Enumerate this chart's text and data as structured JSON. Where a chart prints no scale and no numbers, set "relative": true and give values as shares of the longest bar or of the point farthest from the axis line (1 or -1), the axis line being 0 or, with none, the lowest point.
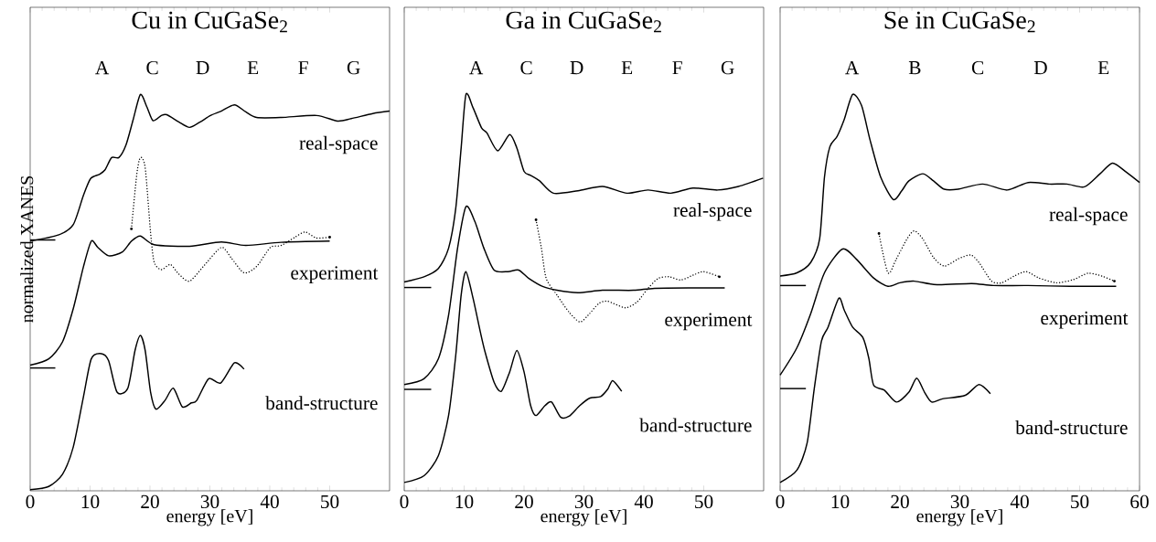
{
  "chart_data": [
    {
      "type": "line",
      "title": "Cu in CuGaSe$_{2}$",
      "xlabel": "energy     [eV]",
      "ylabel": "normalized XANES",
      "relative": true,
      "xlim": [
        0,
        60
      ],
      "xticks": [
        0,
        10,
        20,
        30,
        40,
        50
      ],
      "legend": false,
      "marker": "none",
      "annotations": [
        "A",
        "C",
        "D",
        "E",
        "F",
        "G"
      ],
      "series": [
        {
          "name": "real-space",
          "color": "#000000",
          "line_style": "solid",
          "x": [
            0,
            4.8,
            7.2,
            8.9,
            10.1,
            11.6,
            12.5,
            13.6,
            14.8,
            16.0,
            17.2,
            18.4,
            19.5,
            20.5,
            21.9,
            22.8,
            24.8,
            26.6,
            28.4,
            30.1,
            31.9,
            34.1,
            36.0,
            37.8,
            41.9,
            47.8,
            51.3,
            53.6,
            57.2,
            60
          ],
          "values": [
            0.63,
            0.646,
            0.672,
            0.746,
            0.788,
            0.799,
            0.81,
            0.841,
            0.841,
            0.873,
            0.937,
            1.0,
            0.968,
            0.934,
            0.947,
            0.949,
            0.931,
            0.917,
            0.931,
            0.947,
            0.958,
            0.974,
            0.956,
            0.942,
            0.942,
            0.947,
            0.933,
            0.939,
            0.952,
            0.958
          ]
        },
        {
          "name": "experiment",
          "color": "#000000",
          "line_style": "solid",
          "x": [
            0,
            3.1,
            5.4,
            7.2,
            8.9,
            10.2,
            11.3,
            13.1,
            15.4,
            16.9,
            18.4,
            20.7,
            26.6,
            31.9,
            36.0,
            41.9,
            50
          ],
          "values": [
            0.317,
            0.333,
            0.376,
            0.46,
            0.566,
            0.63,
            0.614,
            0.593,
            0.603,
            0.63,
            0.643,
            0.621,
            0.617,
            0.628,
            0.619,
            0.627,
            0.63
          ]
        },
        {
          "color": "#000000",
          "line_style": "dotted",
          "x": [
            16.9,
            17.8,
            18.4,
            19.2,
            20.1,
            20.7,
            21.9,
            23.4,
            24.8,
            26.6,
            28.9,
            31.9,
            33.6,
            35.7,
            37.8,
            40.1,
            41.9,
            44.2,
            45.9,
            47.8,
            50
          ],
          "values": [
            0.661,
            0.799,
            0.841,
            0.815,
            0.651,
            0.577,
            0.558,
            0.571,
            0.547,
            0.529,
            0.566,
            0.614,
            0.587,
            0.55,
            0.566,
            0.614,
            0.619,
            0.64,
            0.653,
            0.638,
            0.64
          ]
        },
        {
          "name": "band-structure",
          "color": "#000000",
          "line_style": "solid",
          "x": [
            0,
            3.1,
            5.4,
            7.2,
            8.9,
            10.2,
            11.9,
            13.1,
            14.5,
            16.3,
            17.5,
            18.4,
            19.2,
            20.1,
            21.0,
            22.5,
            23.9,
            25.4,
            26.9,
            27.8,
            29.8,
            31.8,
            34.1,
            35.7
          ],
          "values": [
            0.003,
            0.011,
            0.042,
            0.111,
            0.238,
            0.333,
            0.346,
            0.328,
            0.249,
            0.259,
            0.354,
            0.392,
            0.354,
            0.249,
            0.206,
            0.228,
            0.259,
            0.212,
            0.222,
            0.228,
            0.283,
            0.272,
            0.323,
            0.307
          ]
        },
        {
          "color": "#000000",
          "line_style": "solid",
          "x": [
            0,
            4.2
          ],
          "values": [
            0.633,
            0.633
          ]
        },
        {
          "color": "#000000",
          "line_style": "solid",
          "x": [
            0,
            4.2
          ],
          "values": [
            0.31,
            0.31
          ]
        }
      ]
    },
    {
      "type": "line",
      "title": "Ga in CuGaSe$_{2}$",
      "xlabel": "energy     [eV]",
      "relative": true,
      "xlim": [
        0,
        60
      ],
      "xticks": [
        0,
        10,
        20,
        30,
        40,
        50
      ],
      "legend": false,
      "marker": "none",
      "annotations": [
        "A",
        "C",
        "D",
        "E",
        "F",
        "G"
      ],
      "series": [
        {
          "name": "real-space",
          "color": "#000000",
          "line_style": "solid",
          "x": [
            0,
            3.3,
            5.7,
            7.4,
            8.6,
            9.5,
            10.3,
            11.5,
            12.9,
            13.8,
            15.6,
            17.6,
            18.8,
            20.0,
            21.1,
            22.6,
            24.9,
            29.0,
            33.1,
            37.2,
            40.7,
            44.5,
            48.2,
            52.3,
            55.8,
            59.9
          ],
          "values": [
            0.527,
            0.54,
            0.561,
            0.612,
            0.713,
            0.865,
            1.0,
            0.966,
            0.916,
            0.903,
            0.858,
            0.899,
            0.865,
            0.806,
            0.796,
            0.782,
            0.751,
            0.757,
            0.768,
            0.751,
            0.759,
            0.751,
            0.764,
            0.759,
            0.768,
            0.789
          ]
        },
        {
          "name": "experiment",
          "color": "#000000",
          "line_style": "solid",
          "x": [
            0,
            3.3,
            5.7,
            7.4,
            8.9,
            10.3,
            11.8,
            13.3,
            15.0,
            17.3,
            19.1,
            20.8,
            23.2,
            25.5,
            29.0,
            33.1,
            38.3,
            41.8,
            48.2,
            53.5
          ],
          "values": [
            0.268,
            0.283,
            0.333,
            0.443,
            0.612,
            0.717,
            0.679,
            0.612,
            0.557,
            0.553,
            0.557,
            0.536,
            0.515,
            0.506,
            0.5,
            0.506,
            0.506,
            0.511,
            0.512,
            0.512
          ]
        },
        {
          "color": "#000000",
          "line_style": "dotted",
          "x": [
            22.0,
            22.9,
            23.7,
            25.5,
            27.5,
            29.3,
            30.7,
            32.5,
            34.0,
            36.9,
            38.9,
            40.7,
            42.4,
            44.2,
            46.2,
            48.2,
            50.0,
            52.6
          ],
          "values": [
            0.684,
            0.612,
            0.536,
            0.494,
            0.451,
            0.426,
            0.443,
            0.473,
            0.478,
            0.462,
            0.477,
            0.511,
            0.536,
            0.54,
            0.532,
            0.544,
            0.553,
            0.54
          ]
        },
        {
          "name": "band-structure",
          "color": "#000000",
          "line_style": "solid",
          "x": [
            0,
            3.3,
            5.7,
            7.4,
            8.6,
            9.5,
            10.3,
            11.5,
            12.7,
            13.5,
            15.0,
            16.2,
            17.6,
            18.8,
            20.0,
            21.1,
            22.0,
            23.5,
            24.6,
            26.1,
            27.5,
            29.3,
            31.0,
            32.8,
            34.0,
            34.8,
            36.3
          ],
          "values": [
            0.021,
            0.038,
            0.089,
            0.19,
            0.342,
            0.494,
            0.553,
            0.485,
            0.401,
            0.35,
            0.274,
            0.251,
            0.3,
            0.354,
            0.3,
            0.215,
            0.19,
            0.215,
            0.224,
            0.186,
            0.188,
            0.215,
            0.234,
            0.238,
            0.257,
            0.278,
            0.251
          ]
        },
        {
          "color": "#000000",
          "line_style": "solid",
          "x": [
            0,
            4.5
          ],
          "values": [
            0.513,
            0.513
          ]
        },
        {
          "color": "#000000",
          "line_style": "solid",
          "x": [
            0,
            4.5
          ],
          "values": [
            0.256,
            0.256
          ]
        }
      ]
    },
    {
      "type": "line",
      "title": "Se in CuGaSe$_{2}$",
      "xlabel": "energy     [eV]",
      "relative": true,
      "xlim": [
        0,
        60
      ],
      "xticks": [
        0,
        10,
        20,
        30,
        40,
        50,
        60
      ],
      "legend": false,
      "marker": "none",
      "annotations": [
        "A",
        "B",
        "C",
        "D",
        "E"
      ],
      "series": [
        {
          "name": "real-space",
          "color": "#000000",
          "line_style": "solid",
          "x": [
            0,
            2.8,
            5.1,
            6.6,
            7.4,
            8.3,
            9.5,
            10.7,
            12.1,
            13.6,
            15.0,
            16.8,
            18.9,
            20.3,
            21.5,
            23.8,
            25.6,
            27.4,
            29.7,
            33.8,
            37.9,
            41.4,
            44.9,
            47.9,
            50.8,
            53.4,
            55.5,
            57.8,
            60
          ],
          "values": [
            0.542,
            0.55,
            0.576,
            0.636,
            0.791,
            0.868,
            0.894,
            0.937,
            1.0,
            0.972,
            0.886,
            0.791,
            0.735,
            0.757,
            0.782,
            0.8,
            0.782,
            0.761,
            0.761,
            0.774,
            0.759,
            0.778,
            0.774,
            0.774,
            0.767,
            0.8,
            0.827,
            0.804,
            0.778
          ]
        },
        {
          "name": "experiment",
          "color": "#000000",
          "line_style": "solid",
          "x": [
            0,
            2.8,
            5.1,
            7.4,
            10.4,
            12.7,
            15.6,
            18.0,
            20.0,
            22.4,
            26.2,
            32.0,
            35.6,
            41.4,
            48.4,
            56.1
          ],
          "values": [
            0.292,
            0.361,
            0.447,
            0.55,
            0.61,
            0.585,
            0.537,
            0.516,
            0.525,
            0.529,
            0.52,
            0.523,
            0.518,
            0.518,
            0.516,
            0.516
          ]
        },
        {
          "color": "#000000",
          "line_style": "dotted",
          "x": [
            16.5,
            18.0,
            19.4,
            21.2,
            22.4,
            23.8,
            25.6,
            27.4,
            29.7,
            31.8,
            33.2,
            35.3,
            37.0,
            39.1,
            41.1,
            43.2,
            46.1,
            49.0,
            51.4,
            53.7,
            55.8
          ],
          "values": [
            0.649,
            0.55,
            0.585,
            0.636,
            0.656,
            0.636,
            0.589,
            0.567,
            0.585,
            0.595,
            0.576,
            0.529,
            0.525,
            0.542,
            0.553,
            0.537,
            0.525,
            0.533,
            0.549,
            0.542,
            0.529
          ]
        },
        {
          "name": "band-structure",
          "color": "#000000",
          "line_style": "solid",
          "x": [
            0,
            2.8,
            4.5,
            5.7,
            6.9,
            8.0,
            9.8,
            10.7,
            12.1,
            13.8,
            14.8,
            15.6,
            17.4,
            19.4,
            21.5,
            22.8,
            24.1,
            25.3,
            27.1,
            30.9,
            33.2,
            35.1
          ],
          "values": [
            0.021,
            0.052,
            0.12,
            0.258,
            0.378,
            0.413,
            0.486,
            0.456,
            0.413,
            0.387,
            0.335,
            0.267,
            0.254,
            0.224,
            0.249,
            0.284,
            0.249,
            0.224,
            0.232,
            0.241,
            0.268,
            0.245
          ]
        },
        {
          "color": "#000000",
          "line_style": "solid",
          "x": [
            0,
            4.3
          ],
          "values": [
            0.518,
            0.518
          ]
        },
        {
          "color": "#000000",
          "line_style": "solid",
          "x": [
            0,
            4.3
          ],
          "values": [
            0.258,
            0.258
          ]
        }
      ]
    }
  ]
}
